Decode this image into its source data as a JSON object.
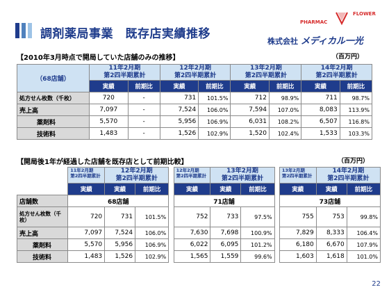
{
  "header": {
    "title": "調剤薬局事業　既存店実績推移",
    "logo_left": "PHARMAC",
    "logo_right": "FLOWER",
    "company_prefix": "株式会社",
    "company_brand": "メディカル一光"
  },
  "section1": {
    "title": "【2010年3月時点で開局していた店舗のみの推移】",
    "unit": "（百万円）",
    "store_label": "（68店舗）",
    "periods": [
      {
        "year": "11年2月期",
        "sub": "第2四半期累計"
      },
      {
        "year": "12年2月期",
        "sub": "第2四半期累計"
      },
      {
        "year": "13年2月期",
        "sub": "第2四半期累計"
      },
      {
        "year": "14年2月期",
        "sub": "第2四半期累計"
      }
    ],
    "col_actual": "実績",
    "col_yoy": "前期比",
    "rows": [
      {
        "label": "処方せん枚数（千枚）",
        "values": [
          "720",
          "-",
          "731",
          "101.5%",
          "712",
          "98.9%",
          "711",
          "98.7%"
        ]
      },
      {
        "label": "売上高",
        "values": [
          "7,097",
          "-",
          "7,524",
          "106.0%",
          "7,594",
          "107.0%",
          "8,083",
          "113.9%"
        ]
      },
      {
        "label": "薬剤料",
        "values": [
          "5,570",
          "-",
          "5,956",
          "106.9%",
          "6,031",
          "108.2%",
          "6,507",
          "116.8%"
        ]
      },
      {
        "label": "技術料",
        "values": [
          "1,483",
          "-",
          "1,526",
          "102.9%",
          "1,520",
          "102.4%",
          "1,533",
          "103.3%"
        ]
      }
    ]
  },
  "section2": {
    "title": "【開局後1年が経過した店舗を既存店として前期比較】",
    "unit": "（百万円）",
    "blocks": [
      {
        "prev_year": "11年2月期",
        "prev_sub": "第2四半期累計",
        "year": "12年2月期",
        "sub": "第2四半期累計",
        "stores": "68店舗"
      },
      {
        "prev_year": "12年2月期",
        "prev_sub": "第2四半期累計",
        "year": "13年2月期",
        "sub": "第2四半期累計",
        "stores": "71店舗"
      },
      {
        "prev_year": "13年2月期",
        "prev_sub": "第2四半期累計",
        "year": "14年2月期",
        "sub": "第2四半期累計",
        "stores": "73店舗"
      }
    ],
    "col_actual": "実績",
    "col_yoy": "前期比",
    "store_count_label": "店舗数",
    "rows": [
      {
        "label": "処方せん枚数（千枚）",
        "values": [
          "720",
          "731",
          "101.5%",
          "752",
          "733",
          "97.5%",
          "755",
          "753",
          "99.8%"
        ]
      },
      {
        "label": "売上高",
        "values": [
          "7,097",
          "7,524",
          "106.0%",
          "7,630",
          "7,698",
          "100.9%",
          "7,829",
          "8,333",
          "106.4%"
        ]
      },
      {
        "label": "薬剤料",
        "values": [
          "5,570",
          "5,956",
          "106.9%",
          "6,022",
          "6,095",
          "101.2%",
          "6,180",
          "6,670",
          "107.9%"
        ]
      },
      {
        "label": "技術料",
        "values": [
          "1,483",
          "1,526",
          "102.9%",
          "1,565",
          "1,559",
          "99.6%",
          "1,603",
          "1,618",
          "101.0%"
        ]
      }
    ]
  },
  "page_number": "22"
}
